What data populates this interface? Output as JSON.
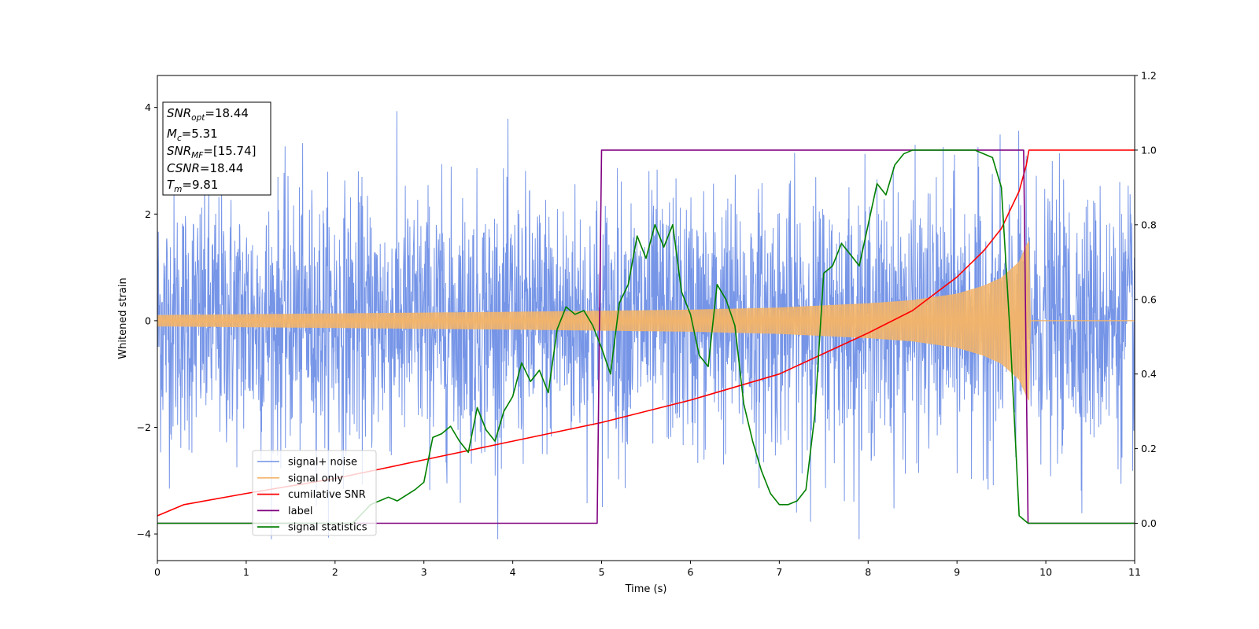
{
  "chart_data": {
    "type": "line",
    "title": "",
    "xlabel": "Time (s)",
    "ylabel": "Whitened strain",
    "xlim": [
      0,
      11
    ],
    "ylim": [
      -4.5,
      4.6
    ],
    "y2lim": [
      -0.1,
      1.2
    ],
    "x_ticks": [
      0,
      1,
      2,
      3,
      4,
      5,
      6,
      7,
      8,
      9,
      10,
      11
    ],
    "y_ticks": [
      -4,
      -2,
      0,
      2,
      4
    ],
    "y2_ticks": [
      "0.0",
      "0.2",
      "0.4",
      "0.6",
      "0.8",
      "1.0",
      "1.2"
    ],
    "legend": {
      "location": "lower-left",
      "entries": [
        "signal+ noise",
        "signal only",
        "cumilative SNR",
        "label",
        "signal statistics"
      ]
    },
    "annotation_box": [
      {
        "sym": "SNR",
        "sub": "opt",
        "value": "=18.44"
      },
      {
        "sym": "M",
        "sub": "c",
        "value": "=5.31"
      },
      {
        "sym": "SNR",
        "sub": "MF",
        "value": "=[15.74]"
      },
      {
        "sym": "CSNR",
        "sub": "",
        "value": "=18.44"
      },
      {
        "sym": "T",
        "sub": "m",
        "value": "=9.81"
      }
    ],
    "colors": {
      "signal_noise": "#6f8fe6",
      "signal_only": "#f2b46a",
      "cumulative_snr": "#ff0000",
      "label": "#800080",
      "signal_statistics": "#008000"
    },
    "series": [
      {
        "name": "signal+ noise",
        "axis": "left",
        "noise_std": 1.2,
        "x_range": [
          0,
          11
        ],
        "samples": 3000
      },
      {
        "name": "signal only",
        "axis": "left",
        "envelope": [
          [
            0,
            0.1
          ],
          [
            2,
            0.13
          ],
          [
            4,
            0.16
          ],
          [
            5,
            0.18
          ],
          [
            6,
            0.2
          ],
          [
            7,
            0.24
          ],
          [
            8,
            0.32
          ],
          [
            8.5,
            0.38
          ],
          [
            9,
            0.5
          ],
          [
            9.3,
            0.65
          ],
          [
            9.5,
            0.8
          ],
          [
            9.7,
            1.1
          ],
          [
            9.78,
            1.4
          ],
          [
            9.81,
            1.5
          ],
          [
            9.82,
            0
          ],
          [
            11,
            0
          ]
        ]
      },
      {
        "name": "cumilative SNR",
        "axis": "right",
        "x": [
          0,
          0.3,
          1,
          2,
          3,
          4,
          5,
          6,
          7,
          8,
          8.5,
          9,
          9.3,
          9.5,
          9.7,
          9.78,
          9.81,
          11
        ],
        "y": [
          0.02,
          0.05,
          0.08,
          0.12,
          0.17,
          0.22,
          0.27,
          0.33,
          0.4,
          0.51,
          0.57,
          0.66,
          0.73,
          0.79,
          0.89,
          0.96,
          1.0,
          1.0
        ]
      },
      {
        "name": "label",
        "axis": "right",
        "x": [
          0,
          4.95,
          5.0,
          9.75,
          9.8,
          11
        ],
        "y": [
          0,
          0,
          1,
          1,
          0,
          0
        ]
      },
      {
        "name": "signal statistics",
        "axis": "right",
        "x": [
          0,
          2.2,
          2.4,
          2.6,
          2.7,
          2.9,
          3.0,
          3.1,
          3.2,
          3.3,
          3.4,
          3.5,
          3.6,
          3.7,
          3.8,
          3.9,
          4.0,
          4.1,
          4.2,
          4.3,
          4.4,
          4.5,
          4.6,
          4.7,
          4.8,
          4.9,
          5.0,
          5.1,
          5.2,
          5.3,
          5.4,
          5.5,
          5.6,
          5.7,
          5.8,
          5.9,
          6.0,
          6.1,
          6.2,
          6.3,
          6.4,
          6.5,
          6.6,
          6.7,
          6.8,
          6.9,
          7.0,
          7.1,
          7.2,
          7.3,
          7.4,
          7.5,
          7.6,
          7.7,
          7.8,
          7.9,
          8.0,
          8.1,
          8.2,
          8.3,
          8.4,
          8.5,
          8.6,
          8.8,
          9.0,
          9.2,
          9.4,
          9.5,
          9.6,
          9.7,
          9.8,
          11
        ],
        "y": [
          0.0,
          0.0,
          0.05,
          0.07,
          0.06,
          0.09,
          0.11,
          0.23,
          0.24,
          0.26,
          0.22,
          0.19,
          0.31,
          0.25,
          0.22,
          0.3,
          0.34,
          0.43,
          0.38,
          0.41,
          0.35,
          0.52,
          0.58,
          0.56,
          0.57,
          0.53,
          0.47,
          0.4,
          0.59,
          0.64,
          0.77,
          0.71,
          0.8,
          0.74,
          0.8,
          0.62,
          0.56,
          0.45,
          0.42,
          0.64,
          0.6,
          0.53,
          0.32,
          0.22,
          0.14,
          0.08,
          0.05,
          0.05,
          0.06,
          0.09,
          0.29,
          0.67,
          0.69,
          0.75,
          0.72,
          0.69,
          0.8,
          0.91,
          0.88,
          0.96,
          0.99,
          1.0,
          1.0,
          1.0,
          1.0,
          1.0,
          0.98,
          0.9,
          0.5,
          0.02,
          0.0,
          0.0
        ]
      }
    ]
  }
}
